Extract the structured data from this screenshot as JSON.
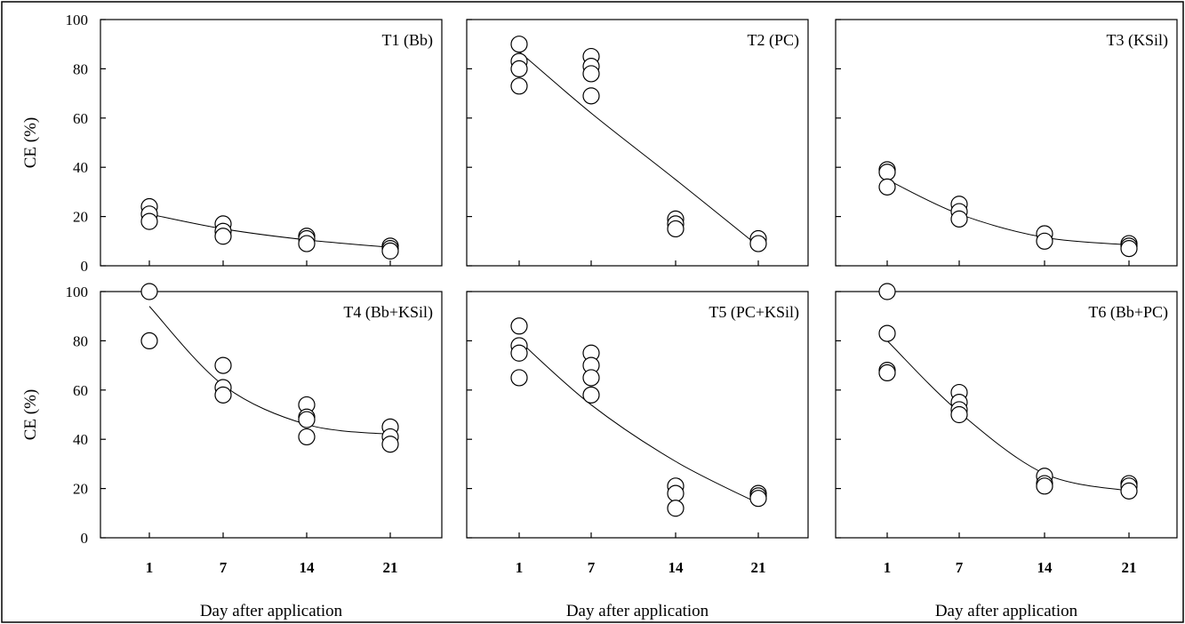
{
  "chart_data": [
    {
      "type": "scatter",
      "title": "T1 (Bb)",
      "xlabel": "",
      "ylabel": "CE (%)",
      "categories": [
        "1",
        "7",
        "14",
        "21"
      ],
      "ylim": [
        0,
        100
      ],
      "yticks": [
        "0",
        "20",
        "40",
        "60",
        "80",
        "100"
      ],
      "points": [
        {
          "x": "1",
          "y": 24
        },
        {
          "x": "1",
          "y": 21
        },
        {
          "x": "1",
          "y": 18
        },
        {
          "x": "7",
          "y": 17
        },
        {
          "x": "7",
          "y": 14
        },
        {
          "x": "7",
          "y": 12
        },
        {
          "x": "14",
          "y": 12
        },
        {
          "x": "14",
          "y": 11
        },
        {
          "x": "14",
          "y": 9
        },
        {
          "x": "21",
          "y": 8
        },
        {
          "x": "21",
          "y": 7
        },
        {
          "x": "21",
          "y": 6
        }
      ],
      "fit": [
        21,
        15,
        10.5,
        7.5
      ]
    },
    {
      "type": "scatter",
      "title": "T2 (PC)",
      "xlabel": "",
      "ylabel": "",
      "categories": [
        "1",
        "7",
        "14",
        "21"
      ],
      "ylim": [
        0,
        100
      ],
      "points": [
        {
          "x": "1",
          "y": 90
        },
        {
          "x": "1",
          "y": 83
        },
        {
          "x": "1",
          "y": 80
        },
        {
          "x": "1",
          "y": 73
        },
        {
          "x": "7",
          "y": 85
        },
        {
          "x": "7",
          "y": 81
        },
        {
          "x": "7",
          "y": 78
        },
        {
          "x": "7",
          "y": 69
        },
        {
          "x": "14",
          "y": 19
        },
        {
          "x": "14",
          "y": 17
        },
        {
          "x": "14",
          "y": 15
        },
        {
          "x": "21",
          "y": 11
        },
        {
          "x": "21",
          "y": 9
        }
      ],
      "fit": [
        87,
        62,
        35,
        8
      ]
    },
    {
      "type": "scatter",
      "title": "T3 (KSil)",
      "xlabel": "",
      "ylabel": "",
      "categories": [
        "1",
        "7",
        "14",
        "21"
      ],
      "ylim": [
        0,
        100
      ],
      "points": [
        {
          "x": "1",
          "y": 39
        },
        {
          "x": "1",
          "y": 38
        },
        {
          "x": "1",
          "y": 32
        },
        {
          "x": "7",
          "y": 25
        },
        {
          "x": "7",
          "y": 22
        },
        {
          "x": "7",
          "y": 19
        },
        {
          "x": "14",
          "y": 13
        },
        {
          "x": "14",
          "y": 10
        },
        {
          "x": "21",
          "y": 9
        },
        {
          "x": "21",
          "y": 8
        },
        {
          "x": "21",
          "y": 7
        }
      ],
      "fit": [
        35,
        21,
        11.5,
        8.5
      ]
    },
    {
      "type": "scatter",
      "title": "T4 (Bb+KSil)",
      "xlabel": "Day after application",
      "ylabel": "CE (%)",
      "categories": [
        "1",
        "7",
        "14",
        "21"
      ],
      "ylim": [
        0,
        100
      ],
      "yticks": [
        "0",
        "20",
        "40",
        "60",
        "80",
        "100"
      ],
      "points": [
        {
          "x": "1",
          "y": 100
        },
        {
          "x": "1",
          "y": 80
        },
        {
          "x": "7",
          "y": 70
        },
        {
          "x": "7",
          "y": 61
        },
        {
          "x": "7",
          "y": 58
        },
        {
          "x": "14",
          "y": 54
        },
        {
          "x": "14",
          "y": 49
        },
        {
          "x": "14",
          "y": 48
        },
        {
          "x": "14",
          "y": 41
        },
        {
          "x": "21",
          "y": 45
        },
        {
          "x": "21",
          "y": 41
        },
        {
          "x": "21",
          "y": 38
        }
      ],
      "fit": [
        94,
        62,
        46,
        42
      ]
    },
    {
      "type": "scatter",
      "title": "T5 (PC+KSil)",
      "xlabel": "Day after application",
      "ylabel": "",
      "categories": [
        "1",
        "7",
        "14",
        "21"
      ],
      "ylim": [
        0,
        100
      ],
      "points": [
        {
          "x": "1",
          "y": 86
        },
        {
          "x": "1",
          "y": 78
        },
        {
          "x": "1",
          "y": 75
        },
        {
          "x": "1",
          "y": 65
        },
        {
          "x": "7",
          "y": 75
        },
        {
          "x": "7",
          "y": 70
        },
        {
          "x": "7",
          "y": 65
        },
        {
          "x": "7",
          "y": 58
        },
        {
          "x": "14",
          "y": 21
        },
        {
          "x": "14",
          "y": 18
        },
        {
          "x": "14",
          "y": 12
        },
        {
          "x": "21",
          "y": 18
        },
        {
          "x": "21",
          "y": 17
        },
        {
          "x": "21",
          "y": 16
        }
      ],
      "fit": [
        80,
        54,
        31,
        14
      ]
    },
    {
      "type": "scatter",
      "title": "T6 (Bb+PC)",
      "xlabel": "Day after application",
      "ylabel": "",
      "categories": [
        "1",
        "7",
        "14",
        "21"
      ],
      "ylim": [
        0,
        100
      ],
      "points": [
        {
          "x": "1",
          "y": 100
        },
        {
          "x": "1",
          "y": 83
        },
        {
          "x": "1",
          "y": 68
        },
        {
          "x": "1",
          "y": 67
        },
        {
          "x": "7",
          "y": 59
        },
        {
          "x": "7",
          "y": 55
        },
        {
          "x": "7",
          "y": 52
        },
        {
          "x": "7",
          "y": 50
        },
        {
          "x": "14",
          "y": 25
        },
        {
          "x": "14",
          "y": 22
        },
        {
          "x": "14",
          "y": 21
        },
        {
          "x": "21",
          "y": 22
        },
        {
          "x": "21",
          "y": 21
        },
        {
          "x": "21",
          "y": 19
        }
      ],
      "fit": [
        80,
        51,
        26,
        19
      ]
    }
  ]
}
